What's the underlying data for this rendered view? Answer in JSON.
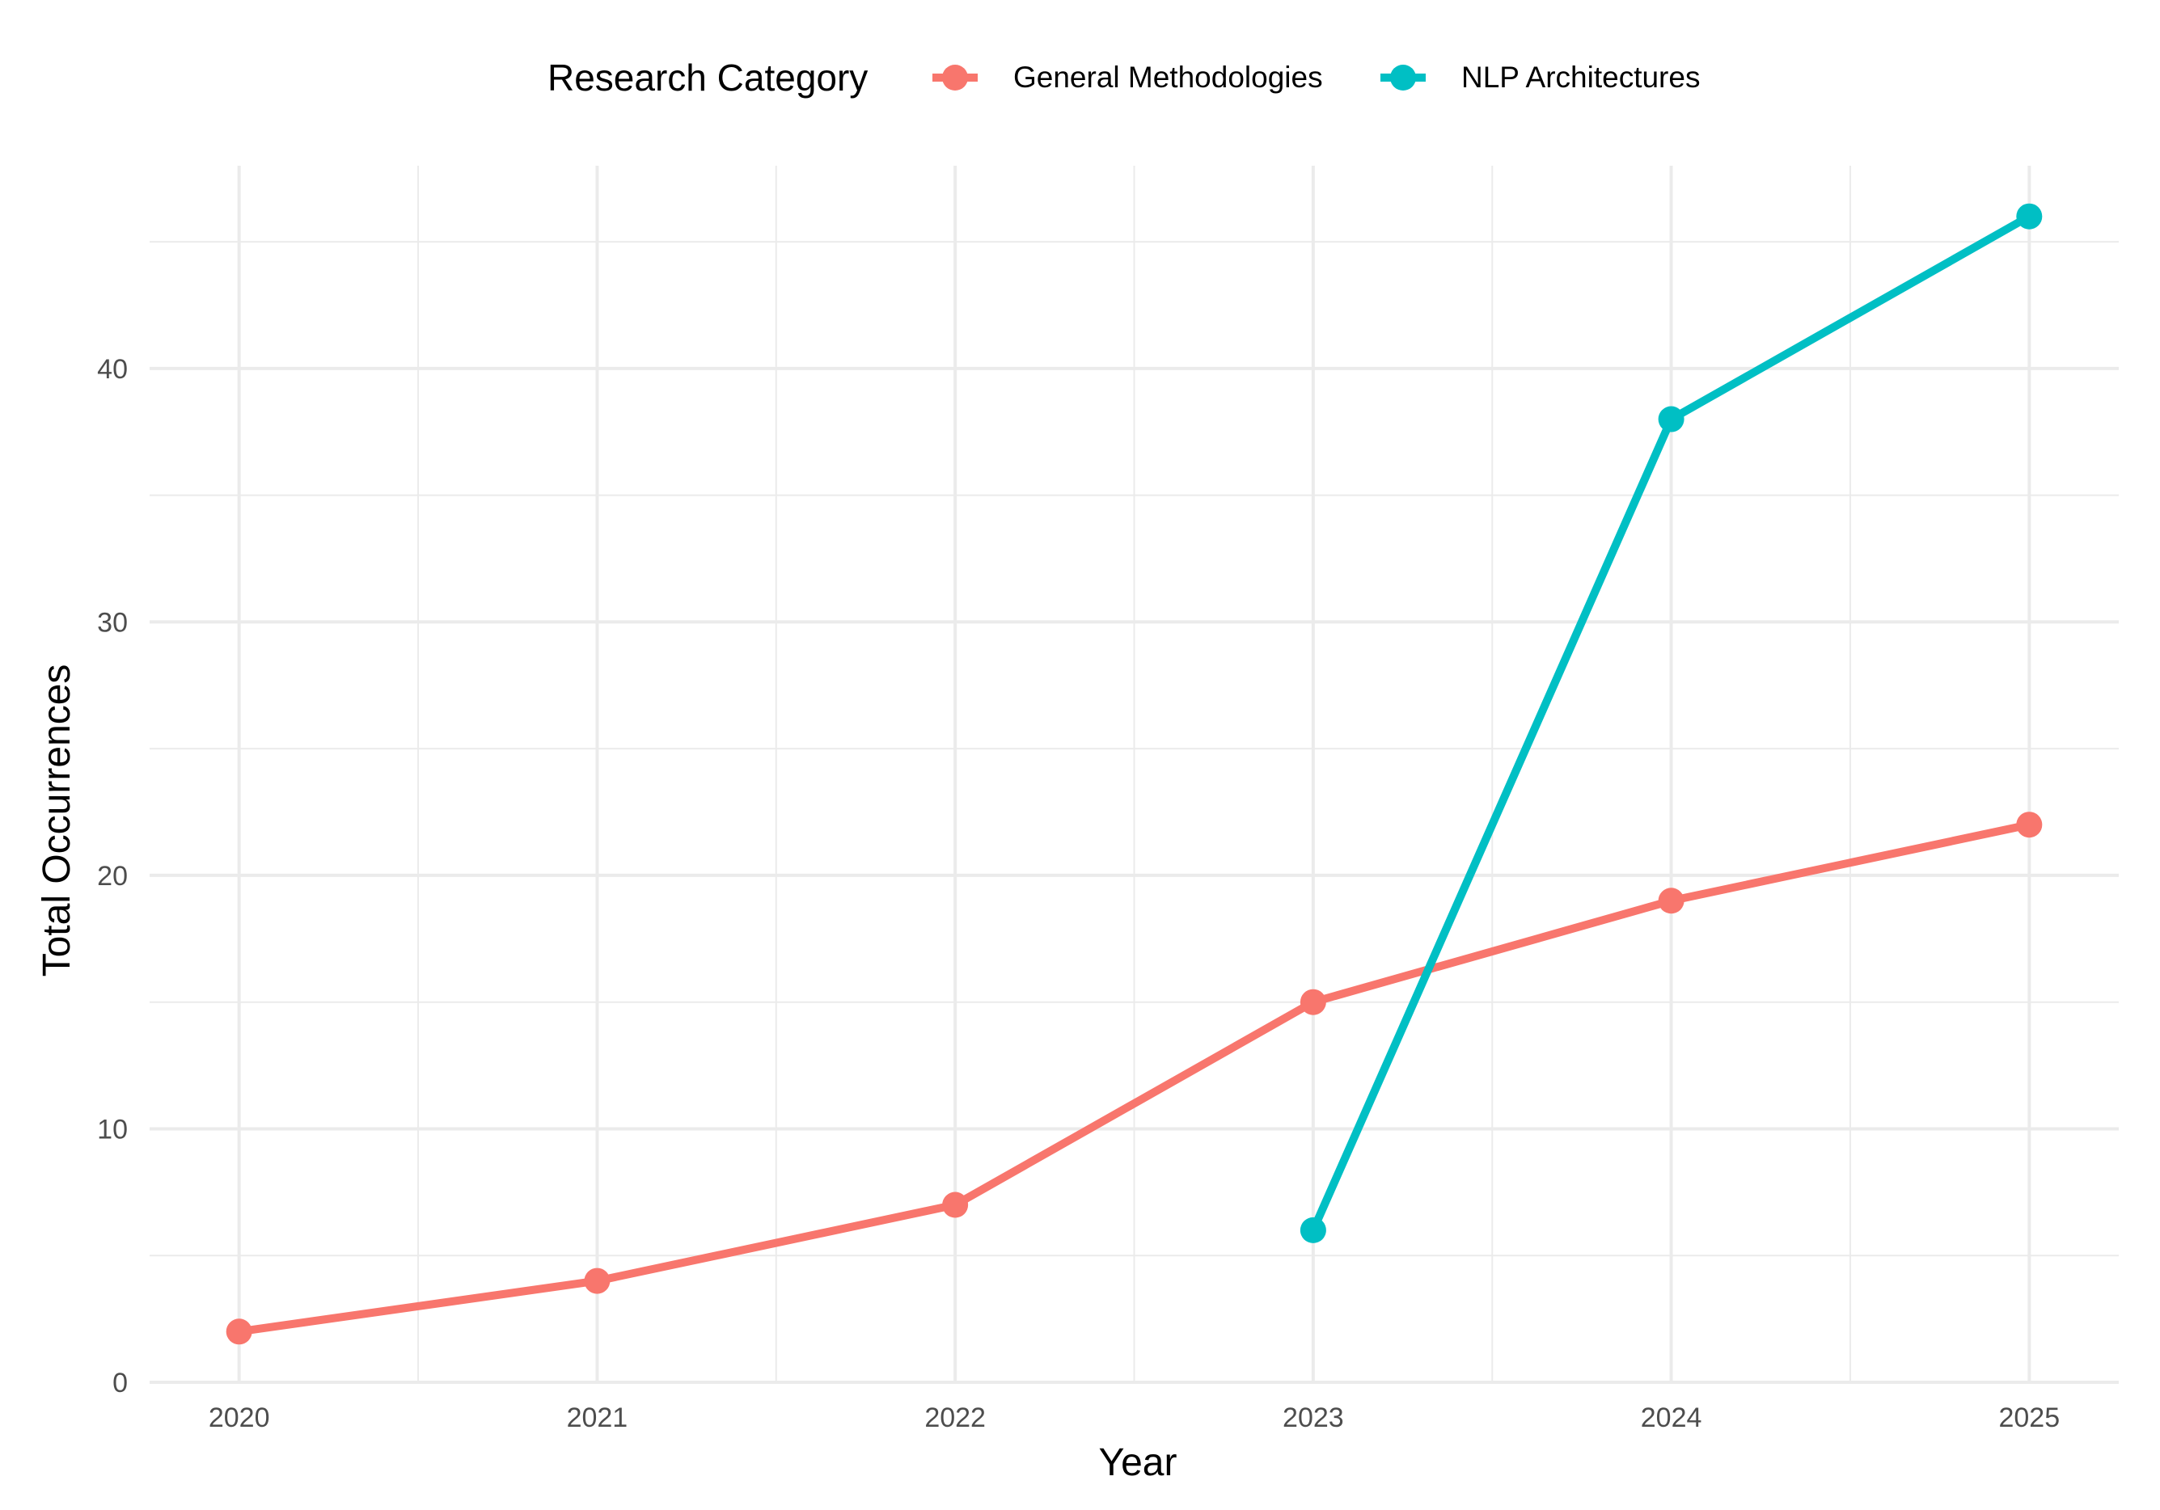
{
  "chart_data": {
    "type": "line",
    "title": "",
    "xlabel": "Year",
    "ylabel": "Total Occurrences",
    "x": [
      2020,
      2021,
      2022,
      2023,
      2024,
      2025
    ],
    "x_ticks": [
      "2020",
      "2021",
      "2022",
      "2023",
      "2024",
      "2025"
    ],
    "xlim": [
      2019.75,
      2025.25
    ],
    "ylim": [
      0,
      48
    ],
    "y_ticks": [
      0,
      10,
      20,
      30,
      40
    ],
    "grid": true,
    "legend": {
      "title": "Research Category",
      "position": "top"
    },
    "series": [
      {
        "name": "General Methodologies",
        "color": "#F8766D",
        "x": [
          2020,
          2021,
          2022,
          2023,
          2024,
          2025
        ],
        "values": [
          2,
          4,
          7,
          15,
          19,
          22
        ]
      },
      {
        "name": "NLP Architectures",
        "color": "#00BFC4",
        "x": [
          2023,
          2024,
          2025
        ],
        "values": [
          6,
          38,
          46
        ]
      }
    ]
  }
}
